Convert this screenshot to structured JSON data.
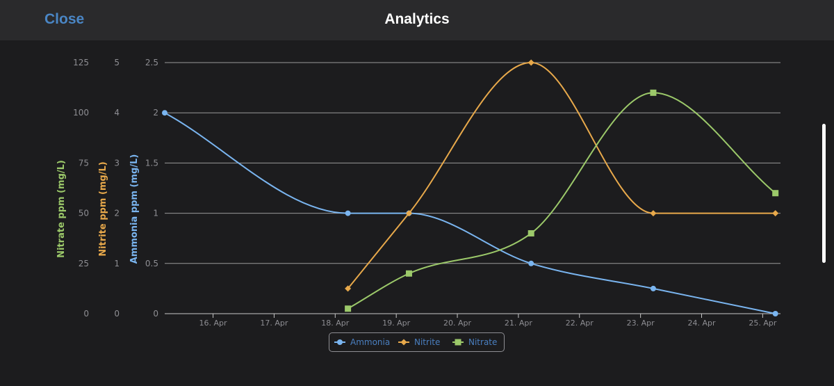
{
  "header": {
    "close_label": "Close",
    "title": "Analytics"
  },
  "colors": {
    "ammonia": "#7ab5f0",
    "nitrite": "#e8a94b",
    "nitrate": "#9cc96a",
    "legend_text": "#4a7fc0",
    "background": "#1c1c1e",
    "grid": "#9a9a9a"
  },
  "chart_data": {
    "type": "line",
    "x_labels": [
      "16. Apr",
      "17. Apr",
      "18. Apr",
      "19. Apr",
      "20. Apr",
      "21. Apr",
      "22. Apr",
      "23. Apr",
      "24. Apr",
      "25. Apr"
    ],
    "xlim": [
      "15. Apr 05:00",
      "25. Apr 07:00"
    ],
    "axes": [
      {
        "label": "Nitrate ppm (mg/L)",
        "min": 0,
        "max": 125,
        "ticks": [
          "0",
          "25",
          "50",
          "75",
          "100",
          "125"
        ]
      },
      {
        "label": "Nitrite ppm (mg/L)",
        "min": 0,
        "max": 5,
        "ticks": [
          "0",
          "1",
          "2",
          "3",
          "4",
          "5"
        ]
      },
      {
        "label": "Ammonia ppm (mg/L)",
        "min": 0,
        "max": 2.5,
        "ticks": [
          "0",
          "0.5",
          "1",
          "1.5",
          "2",
          "2.5"
        ]
      }
    ],
    "series": [
      {
        "name": "Ammonia",
        "axis": 2,
        "marker": "circle",
        "x": [
          "15. Apr 05:00",
          "18. Apr 05:00",
          "19. Apr 05:00",
          "21. Apr 05:00",
          "23. Apr 05:00",
          "25. Apr 05:00"
        ],
        "values": [
          2,
          1,
          1,
          0.5,
          0.25,
          0
        ]
      },
      {
        "name": "Nitrite",
        "axis": 1,
        "marker": "diamond",
        "x": [
          "18. Apr 05:00",
          "19. Apr 05:00",
          "21. Apr 05:00",
          "23. Apr 05:00",
          "25. Apr 05:00"
        ],
        "values": [
          0.5,
          2,
          5,
          2,
          2
        ]
      },
      {
        "name": "Nitrate",
        "axis": 0,
        "marker": "square",
        "x": [
          "18. Apr 05:00",
          "19. Apr 05:00",
          "21. Apr 05:00",
          "23. Apr 05:00",
          "25. Apr 05:00"
        ],
        "values": [
          2.5,
          20,
          40,
          110,
          60
        ]
      }
    ],
    "grid": true,
    "legend_position": "bottom-center"
  }
}
